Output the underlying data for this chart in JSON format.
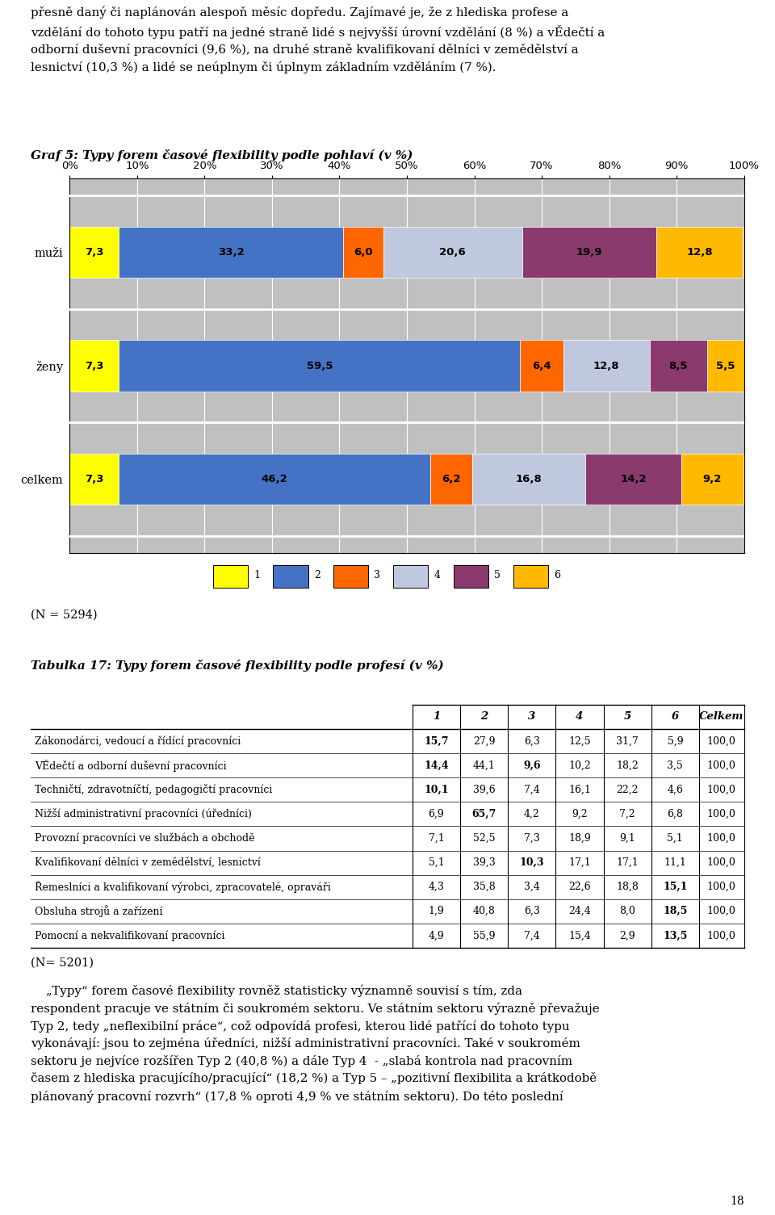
{
  "chart_title": "Graf 5: Typy forem časové flexibility podle pohlaví (v %)",
  "bar_colors": [
    "#FFFF00",
    "#4472C4",
    "#FF6600",
    "#C0C8E0",
    "#8B3A6E",
    "#FFB900"
  ],
  "categories": [
    "muži",
    "ženy",
    "celkem"
  ],
  "data": [
    [
      7.3,
      33.2,
      6.0,
      20.6,
      19.9,
      12.8
    ],
    [
      7.3,
      59.5,
      6.4,
      12.8,
      8.5,
      5.5
    ],
    [
      7.3,
      46.2,
      6.2,
      16.8,
      14.2,
      9.2
    ]
  ],
  "legend_labels": [
    "1",
    "2",
    "3",
    "4",
    "5",
    "6"
  ],
  "n_note": "(N = 5294)",
  "table_title": "Tabulka 17: Typy forem časové flexibility podle profesí (v %)",
  "table_headers": [
    "",
    "1",
    "2",
    "3",
    "4",
    "5",
    "6",
    "Celkem"
  ],
  "table_rows": [
    [
      "Zákonodárci, vedoucí a řídící pracovníci",
      "15,7",
      "27,9",
      "6,3",
      "12,5",
      "31,7",
      "5,9",
      "100,0"
    ],
    [
      "VĚdečtí a odborní duševní pracovníci",
      "14,4",
      "44,1",
      "9,6",
      "10,2",
      "18,2",
      "3,5",
      "100,0"
    ],
    [
      "Techničtí, zdravotníčtí, pedagogičtí pracovníci",
      "10,1",
      "39,6",
      "7,4",
      "16,1",
      "22,2",
      "4,6",
      "100,0"
    ],
    [
      "Nižší administrativní pracovníci (úředníci)",
      "6,9",
      "65,7",
      "4,2",
      "9,2",
      "7,2",
      "6,8",
      "100,0"
    ],
    [
      "Provozní pracovníci ve službách a obchodě",
      "7,1",
      "52,5",
      "7,3",
      "18,9",
      "9,1",
      "5,1",
      "100,0"
    ],
    [
      "Kvalifikovaní dělníci v zemědělství, lesnictví",
      "5,1",
      "39,3",
      "10,3",
      "17,1",
      "17,1",
      "11,1",
      "100,0"
    ],
    [
      "Řemeslníci a kvalifikovaní výrobci, zpracovatelé, opraváři",
      "4,3",
      "35,8",
      "3,4",
      "22,6",
      "18,8",
      "15,1",
      "100,0"
    ],
    [
      "Obsluha strojů a zařízení",
      "1,9",
      "40,8",
      "6,3",
      "24,4",
      "8,0",
      "18,5",
      "100,0"
    ],
    [
      "Pomocní a nekvalifikovaní pracovníci",
      "4,9",
      "55,9",
      "7,4",
      "15,4",
      "2,9",
      "13,5",
      "100,0"
    ]
  ],
  "bold_cells": {
    "0": [
      0
    ],
    "1": [
      0,
      2
    ],
    "2": [
      0
    ],
    "3": [
      1
    ],
    "4": [],
    "5": [
      2
    ],
    "6": [
      5
    ],
    "7": [
      5
    ],
    "8": [
      5
    ]
  },
  "n_note2": "(N= 5201)",
  "page_number": "18",
  "chart_bg_color": "#C0C0C0",
  "intro_lines": [
    "přesně daný či naplánován alespoň měsíc dopředu. Zajímavé je, že z hlediska profese a",
    "vzdělání do tohoto typu patří na jedné straně lidé s nejvyšší úrovní vzdělání (8 %) a vĚdečtí a",
    "odborní duševní pracovníci (9,6 %), na druhé straně kvalifikovaní dělníci v zemědělství a",
    "lesnictví (10,3 %) a lidé se neúplnym či úplnym základním vzděláním (7 %)."
  ],
  "bottom_lines": [
    "    „Typy“ forem časové flexibility rovněž statisticky významně souvisí s tím, zda",
    "respondent pracuje ve státním či soukromém sektoru. Ve státním sektoru výrazně převažuje",
    "Typ 2, tedy „neflexibilní práce“, což odpovídá profesi, kterou lidé patřící do tohoto typu",
    "vykonávají: jsou to zejména úředníci, nižší administrativní pracovníci. Také v soukromém",
    "sektoru je nejvíce rozšířen Typ 2 (40,8 %) a dále Typ 4  - „slabá kontrola nad pracovním",
    "časem z hlediska pracujícího/pracující“ (18,2 %) a Typ 5 – „pozitivní flexibilita a krátkodobě",
    "plánovaný pracovní rozvrh“ (17,8 % oproti 4,9 % ve státním sektoru). Do této poslední"
  ]
}
